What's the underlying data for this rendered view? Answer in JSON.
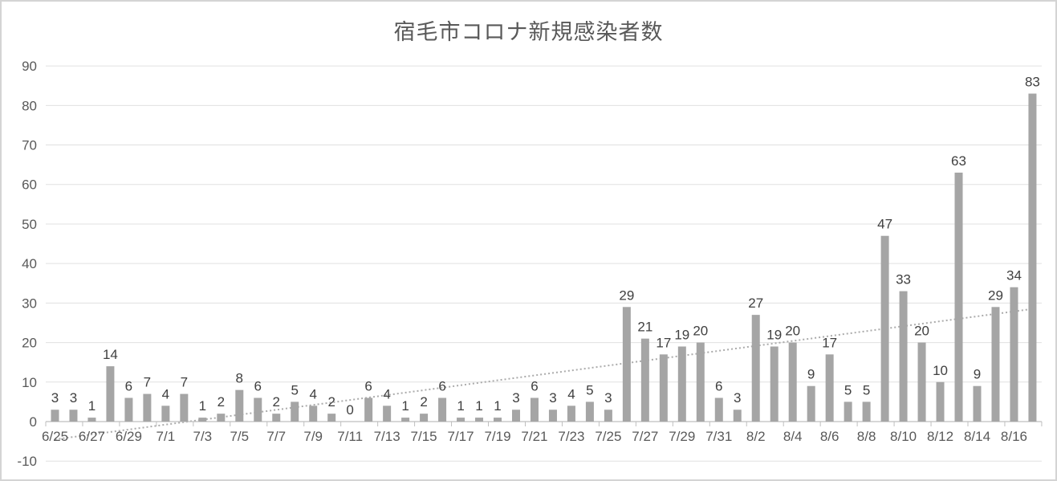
{
  "chart_data": {
    "type": "bar",
    "title": "宿毛市コロナ新規感染者数",
    "xlabel": "",
    "ylabel": "",
    "legend": "none",
    "grid": true,
    "data_labels": true,
    "ylim": [
      -10,
      90
    ],
    "y_ticks": [
      90,
      80,
      70,
      60,
      50,
      40,
      30,
      20,
      10,
      0,
      -10
    ],
    "x_label_interval": 2,
    "categories": [
      "6/25",
      "6/26",
      "6/27",
      "6/28",
      "6/29",
      "6/30",
      "7/1",
      "7/2",
      "7/3",
      "7/4",
      "7/5",
      "7/6",
      "7/7",
      "7/8",
      "7/9",
      "7/10",
      "7/11",
      "7/12",
      "7/13",
      "7/14",
      "7/15",
      "7/16",
      "7/17",
      "7/18",
      "7/19",
      "7/20",
      "7/21",
      "7/22",
      "7/23",
      "7/24",
      "7/25",
      "7/26",
      "7/27",
      "7/28",
      "7/29",
      "7/30",
      "7/31",
      "8/1",
      "8/2",
      "8/3",
      "8/4",
      "8/5",
      "8/6",
      "8/7",
      "8/8",
      "8/9",
      "8/10",
      "8/11",
      "8/12",
      "8/13",
      "8/14",
      "8/15",
      "8/16",
      "8/17"
    ],
    "values": [
      3,
      3,
      1,
      14,
      6,
      7,
      4,
      7,
      1,
      2,
      8,
      6,
      2,
      5,
      4,
      2,
      0,
      6,
      4,
      1,
      2,
      6,
      1,
      1,
      1,
      3,
      6,
      3,
      4,
      5,
      3,
      29,
      21,
      17,
      19,
      20,
      6,
      3,
      27,
      19,
      20,
      9,
      17,
      5,
      5,
      47,
      33,
      20,
      10,
      63,
      9,
      29,
      34,
      83
    ],
    "trendline": {
      "type": "linear",
      "style": "dotted",
      "start_value": -4.5,
      "end_value": 28.5
    },
    "colors": {
      "bar": "#a5a5a5",
      "data_label": "#404040",
      "axis_label": "#595959",
      "title": "#595959",
      "gridline": "#e0e0e0",
      "axis_line": "#bfbfbf",
      "trendline": "#ababab",
      "background": "#ffffff",
      "frame_border": "#d4d4d4"
    }
  }
}
